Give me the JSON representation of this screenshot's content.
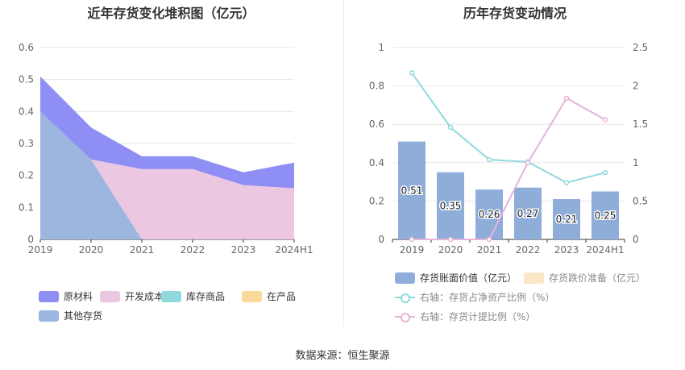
{
  "left_title": "近年存货变化堆积图（亿元）",
  "right_title": "历年存货变动情况",
  "source": "数据来源：恒生聚源",
  "chart_data": [
    {
      "type": "area",
      "title": "近年存货变化堆积图（亿元）",
      "categories": [
        "2019",
        "2020",
        "2021",
        "2022",
        "2023",
        "2024H1"
      ],
      "ylim": [
        0,
        0.6
      ],
      "yticks": [
        "0",
        "0.1",
        "0.2",
        "0.3",
        "0.4",
        "0.5",
        "0.6"
      ],
      "grid": true,
      "legend_position": "bottom-left",
      "series": [
        {
          "name": "其他存货",
          "color": "#9db6e0",
          "values": [
            0.4,
            0.25,
            0.0,
            0.0,
            0.0,
            0.0
          ]
        },
        {
          "name": "开发成本",
          "color": "#ebc7e1",
          "values": [
            0.0,
            0.0,
            0.22,
            0.22,
            0.17,
            0.16
          ]
        },
        {
          "name": "原材料",
          "color": "#8e8ef5",
          "values": [
            0.11,
            0.1,
            0.04,
            0.04,
            0.04,
            0.08
          ]
        },
        {
          "name": "库存商品",
          "color": "#8fd9dc",
          "values": [
            0,
            0,
            0,
            0,
            0,
            0
          ]
        },
        {
          "name": "在产品",
          "color": "#fbd99a",
          "values": [
            0,
            0,
            0,
            0,
            0,
            0
          ]
        }
      ],
      "legend_order": [
        "原材料",
        "开发成本",
        "库存商品",
        "在产品",
        "其他存货"
      ]
    },
    {
      "type": "bar",
      "title": "历年存货变动情况",
      "categories": [
        "2019",
        "2020",
        "2021",
        "2022",
        "2023",
        "2024H1"
      ],
      "ylim": [
        0,
        1
      ],
      "yticks": [
        "0",
        "0.2",
        "0.4",
        "0.6",
        "0.8",
        "1"
      ],
      "y2lim": [
        0,
        2.5
      ],
      "y2ticks": [
        "0",
        "0.5",
        "1",
        "1.5",
        "2",
        "2.5"
      ],
      "grid": true,
      "legend_position": "bottom",
      "series": [
        {
          "name": "存货账面价值（亿元）",
          "type": "bar",
          "axis": "left",
          "color": "#8eadd9",
          "values": [
            0.51,
            0.35,
            0.26,
            0.27,
            0.21,
            0.25
          ],
          "labels": [
            "0.51",
            "0.35",
            "0.26",
            "0.27",
            "0.21",
            "0.25"
          ]
        },
        {
          "name": "存货跌价准备（亿元）",
          "type": "bar",
          "axis": "left",
          "color": "#fbe6c6",
          "values": [
            0,
            0,
            0,
            0,
            0,
            0
          ]
        },
        {
          "name": "右轴：存货占净资产比例（%）",
          "type": "line",
          "axis": "right",
          "color": "#8fd9dc",
          "values": [
            2.17,
            1.46,
            1.04,
            1.01,
            0.74,
            0.87
          ]
        },
        {
          "name": "右轴：存货计提比例（%）",
          "type": "line",
          "axis": "right",
          "color": "#e6b3d9",
          "values": [
            0,
            0,
            0,
            1.0,
            1.84,
            1.56
          ]
        }
      ]
    }
  ]
}
